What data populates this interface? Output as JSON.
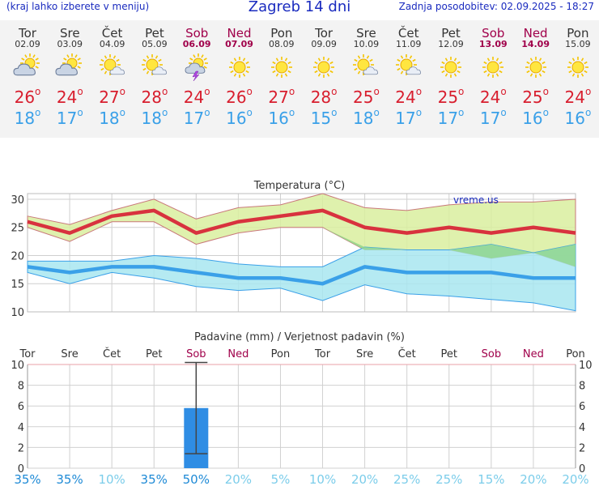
{
  "header": {
    "left": "(kraj lahko izberete v meniju)",
    "title": "Zagreb 14 dni",
    "right": "Zadnja posodobitev: 02.09.2025 - 18:27"
  },
  "days": [
    {
      "name": "Tor",
      "date": "02.09",
      "icon": "sun-cloud",
      "max": "26",
      "min": "18",
      "weekend": false
    },
    {
      "name": "Sre",
      "date": "03.09",
      "icon": "sun-cloud",
      "max": "24",
      "min": "17",
      "weekend": false
    },
    {
      "name": "Čet",
      "date": "04.09",
      "icon": "sun-small-cloud",
      "max": "27",
      "min": "18",
      "weekend": false
    },
    {
      "name": "Pet",
      "date": "05.09",
      "icon": "sun-small-cloud",
      "max": "28",
      "min": "18",
      "weekend": false
    },
    {
      "name": "Sob",
      "date": "06.09",
      "icon": "sun-cloud-lightning",
      "max": "24",
      "min": "17",
      "weekend": true
    },
    {
      "name": "Ned",
      "date": "07.09",
      "icon": "sun",
      "max": "26",
      "min": "16",
      "weekend": true
    },
    {
      "name": "Pon",
      "date": "08.09",
      "icon": "sun",
      "max": "27",
      "min": "16",
      "weekend": false
    },
    {
      "name": "Tor",
      "date": "09.09",
      "icon": "sun",
      "max": "28",
      "min": "15",
      "weekend": false
    },
    {
      "name": "Sre",
      "date": "10.09",
      "icon": "sun-small-cloud",
      "max": "25",
      "min": "18",
      "weekend": false
    },
    {
      "name": "Čet",
      "date": "11.09",
      "icon": "sun-small-cloud",
      "max": "24",
      "min": "17",
      "weekend": false
    },
    {
      "name": "Pet",
      "date": "12.09",
      "icon": "sun",
      "max": "25",
      "min": "17",
      "weekend": false
    },
    {
      "name": "Sob",
      "date": "13.09",
      "icon": "sun",
      "max": "24",
      "min": "17",
      "weekend": true
    },
    {
      "name": "Ned",
      "date": "14.09",
      "icon": "sun",
      "max": "25",
      "min": "16",
      "weekend": true
    },
    {
      "name": "Pon",
      "date": "15.09",
      "icon": "sun",
      "max": "24",
      "min": "16",
      "weekend": false
    }
  ],
  "colors": {
    "max": "#d8323e",
    "max_band": "#d9ee9f",
    "min": "#3aa0e8",
    "min_band": "#a8e6f0",
    "overlap": "#8fd48a",
    "weekend": "#a0004a",
    "precip_bar": "#2f8de4"
  },
  "chart_data": [
    {
      "type": "line",
      "title": "Temperatura (°C)",
      "watermark": "vreme.us",
      "categories": [
        "02.09",
        "03.09",
        "04.09",
        "05.09",
        "06.09",
        "07.09",
        "08.09",
        "09.09",
        "10.09",
        "11.09",
        "12.09",
        "13.09",
        "14.09",
        "15.09"
      ],
      "ylim": [
        10,
        31
      ],
      "yticks": [
        10,
        15,
        20,
        25,
        30
      ],
      "grid": true,
      "series": [
        {
          "role": "max",
          "values": [
            26,
            24,
            27,
            28,
            24,
            26,
            27,
            28,
            25,
            24,
            25,
            24,
            25,
            24
          ]
        },
        {
          "role": "max-high",
          "values": [
            27,
            25.5,
            28,
            30,
            26.5,
            28.5,
            29,
            31,
            28.5,
            28,
            29,
            29.5,
            29.5,
            30
          ]
        },
        {
          "role": "max-low",
          "values": [
            25,
            22.5,
            26,
            26,
            22,
            24,
            25,
            25,
            21,
            21,
            21,
            19.5,
            20.5,
            18
          ]
        },
        {
          "role": "min",
          "values": [
            18,
            17,
            18,
            18,
            17,
            16,
            16,
            15,
            18,
            17,
            17,
            17,
            16,
            16
          ]
        },
        {
          "role": "min-high",
          "values": [
            19,
            19,
            19,
            20,
            19.5,
            18.5,
            18,
            18,
            21.5,
            21,
            21,
            22,
            20.5,
            22
          ]
        },
        {
          "role": "min-low",
          "values": [
            17,
            15,
            17,
            16,
            14.5,
            13.8,
            14.2,
            12,
            14.8,
            13.2,
            12.8,
            12.2,
            11.6,
            10.2
          ]
        }
      ]
    },
    {
      "type": "bar",
      "title": "Padavine (mm) / Verjetnost padavin (%)",
      "day_labels": [
        "Tor",
        "Sre",
        "Čet",
        "Pet",
        "Sob",
        "Ned",
        "Pon",
        "Tor",
        "Sre",
        "Čet",
        "Pet",
        "Sob",
        "Ned",
        "Pon"
      ],
      "values": [
        0,
        0,
        0,
        0,
        5.8,
        0,
        0,
        0,
        0,
        0,
        0,
        0,
        0,
        0
      ],
      "error": [
        null,
        null,
        null,
        null,
        [
          1.4,
          10.2
        ],
        null,
        null,
        null,
        null,
        null,
        null,
        null,
        null,
        null
      ],
      "ylim": [
        0,
        10
      ],
      "yticks": [
        0,
        2,
        4,
        6,
        8,
        10
      ],
      "probabilities": [
        "35%",
        "35%",
        "10%",
        "35%",
        "50%",
        "20%",
        "5%",
        "10%",
        "20%",
        "25%",
        "25%",
        "15%",
        "20%",
        "20%"
      ],
      "grid": true
    }
  ]
}
